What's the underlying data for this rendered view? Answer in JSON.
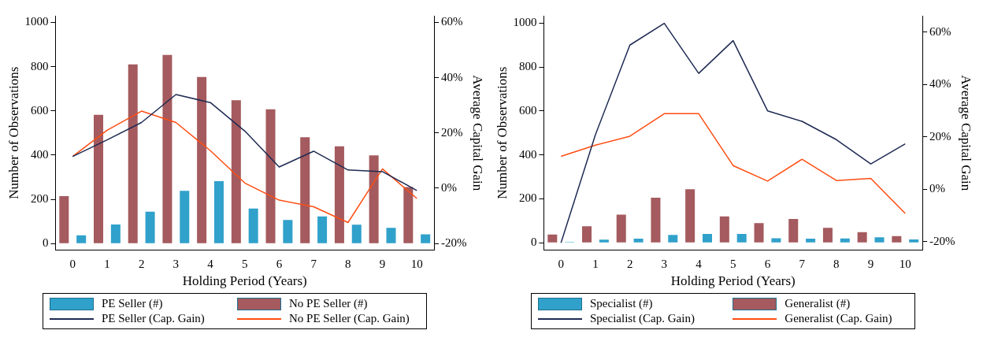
{
  "chart_data": [
    {
      "type": "bar",
      "xlabel": "Holding Period (Years)",
      "ylabel": "Number of Observations",
      "y2label": "Average Capital Gain",
      "categories": [
        "0",
        "1",
        "2",
        "3",
        "4",
        "5",
        "6",
        "7",
        "8",
        "9",
        "10"
      ],
      "ylim": [
        -30,
        1030
      ],
      "yticks": [
        0,
        200,
        400,
        600,
        800,
        1000
      ],
      "y2lim": [
        -22.4,
        62.4
      ],
      "y2ticks": [
        {
          "value": -20,
          "label": "-20%"
        },
        {
          "value": 0,
          "label": "0%"
        },
        {
          "value": 20,
          "label": "20%"
        },
        {
          "value": 40,
          "label": "40%"
        },
        {
          "value": 60,
          "label": "60%"
        }
      ],
      "legend": "bottom",
      "grid": false,
      "series": [
        {
          "name": "PE Seller (#)",
          "color": "#30a1cb",
          "values": [
            37,
            86,
            144,
            238,
            282,
            158,
            107,
            123,
            85,
            71,
            42
          ]
        },
        {
          "name": "No PE Seller (#)",
          "color": "#a45a5e",
          "values": [
            214,
            582,
            810,
            853,
            753,
            648,
            607,
            481,
            440,
            399,
            255
          ]
        },
        {
          "name": "PE Seller (Cap. Gain)",
          "type": "line",
          "axis": "y2",
          "color": "#1e2a52",
          "values": [
            11.5,
            17.5,
            23.8,
            33.9,
            31.0,
            20.7,
            7.7,
            13.4,
            6.6,
            6.0,
            -0.8
          ]
        },
        {
          "name": "No PE Seller (Cap. Gain)",
          "type": "line",
          "axis": "y2",
          "color": "#ff4d12",
          "values": [
            11.5,
            21.0,
            27.9,
            23.8,
            13.6,
            1.9,
            -4.3,
            -6.7,
            -12.4,
            7.0,
            -3.7
          ]
        }
      ]
    },
    {
      "type": "bar",
      "xlabel": "Holding Period (Years)",
      "ylabel": "Number of Observations",
      "y2label": "Average Capital Gain",
      "categories": [
        "0",
        "1",
        "2",
        "3",
        "4",
        "5",
        "6",
        "7",
        "8",
        "9",
        "10"
      ],
      "ylim": [
        -34,
        1034
      ],
      "yticks": [
        0,
        200,
        400,
        600,
        800,
        1000
      ],
      "y2lim": [
        -23.3,
        66.2
      ],
      "y2ticks": [
        {
          "value": -20,
          "label": "-20%"
        },
        {
          "value": 0,
          "label": "0%"
        },
        {
          "value": 20,
          "label": "20%"
        },
        {
          "value": 40,
          "label": "40%"
        },
        {
          "value": 60,
          "label": "60%"
        }
      ],
      "legend": "bottom",
      "grid": false,
      "series": [
        {
          "name": "Specialist (#)",
          "color": "#30a1cb",
          "values": [
            3,
            14,
            18,
            35,
            40,
            40,
            20,
            18,
            19,
            25,
            15
          ]
        },
        {
          "name": "Generalist (#)",
          "color": "#a45a5e",
          "values": [
            37,
            75,
            128,
            205,
            244,
            120,
            89,
            108,
            68,
            48,
            30
          ]
        },
        {
          "name": "Specialist (Cap. Gain)",
          "type": "line",
          "axis": "y2",
          "color": "#1e2a52",
          "values": [
            -20.5,
            20.8,
            55.0,
            63.3,
            44.2,
            56.7,
            29.9,
            25.9,
            18.9,
            9.6,
            17.3
          ]
        },
        {
          "name": "Generalist (Cap. Gain)",
          "type": "line",
          "axis": "y2",
          "color": "#ff4d12",
          "values": [
            12.5,
            16.8,
            20.2,
            28.8,
            28.8,
            9.0,
            3.1,
            11.4,
            3.3,
            4.1,
            -9.3
          ]
        }
      ]
    }
  ]
}
